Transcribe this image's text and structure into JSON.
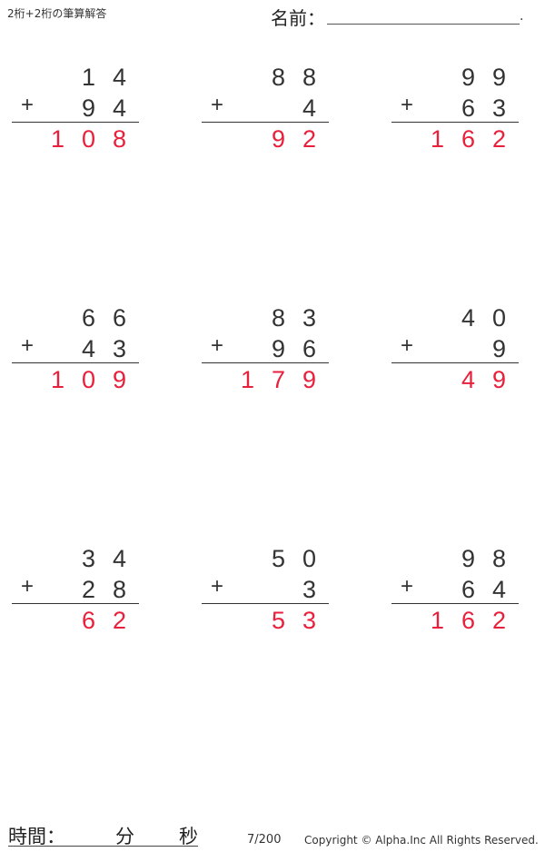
{
  "header": {
    "title": "2桁+2桁の筆算解答",
    "name_label": "名前：",
    "name_end": "."
  },
  "problems": [
    {
      "a": "14",
      "b": "94",
      "answer": "108"
    },
    {
      "a": "88",
      "b": "4",
      "answer": "92"
    },
    {
      "a": "99",
      "b": "63",
      "answer": "162"
    },
    {
      "a": "66",
      "b": "43",
      "answer": "109"
    },
    {
      "a": "83",
      "b": "96",
      "answer": "179"
    },
    {
      "a": "40",
      "b": "9",
      "answer": "49"
    },
    {
      "a": "34",
      "b": "28",
      "answer": "62"
    },
    {
      "a": "50",
      "b": "3",
      "answer": "53"
    },
    {
      "a": "98",
      "b": "64",
      "answer": "162"
    }
  ],
  "operator": "+",
  "footer": {
    "time_label": "時間：",
    "minutes_label": "分",
    "seconds_label": "秒",
    "page": "7/200",
    "copyright": "Copyright © Alpha.Inc All Rights Reserved."
  },
  "colors": {
    "answer": "#e8203c",
    "text": "#333333"
  }
}
